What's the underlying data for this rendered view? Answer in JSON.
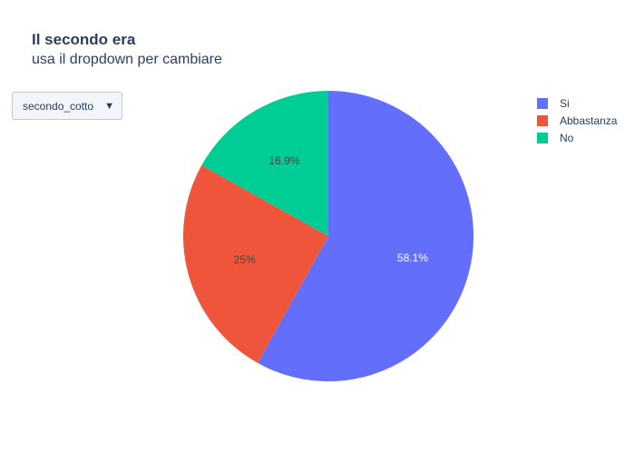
{
  "header": {
    "title": "Il secondo era",
    "subtitle": "usa il dropdown per cambiare"
  },
  "dropdown": {
    "selected": "secondo_cotto",
    "arrow": "▼"
  },
  "chart_data": {
    "type": "pie",
    "title": "Il secondo era",
    "subtitle": "usa il dropdown per cambiare",
    "slices": [
      {
        "label": "Si",
        "value": 58.1,
        "text": "58.1%",
        "color": "#636efa",
        "text_color": "#ffffff"
      },
      {
        "label": "Abbastanza",
        "value": 25,
        "text": "25%",
        "color": "#ef553b",
        "text_color": "#444444"
      },
      {
        "label": "No",
        "value": 16.9,
        "text": "16.9%",
        "color": "#00cc96",
        "text_color": "#444444"
      }
    ],
    "legend": "top-right"
  }
}
